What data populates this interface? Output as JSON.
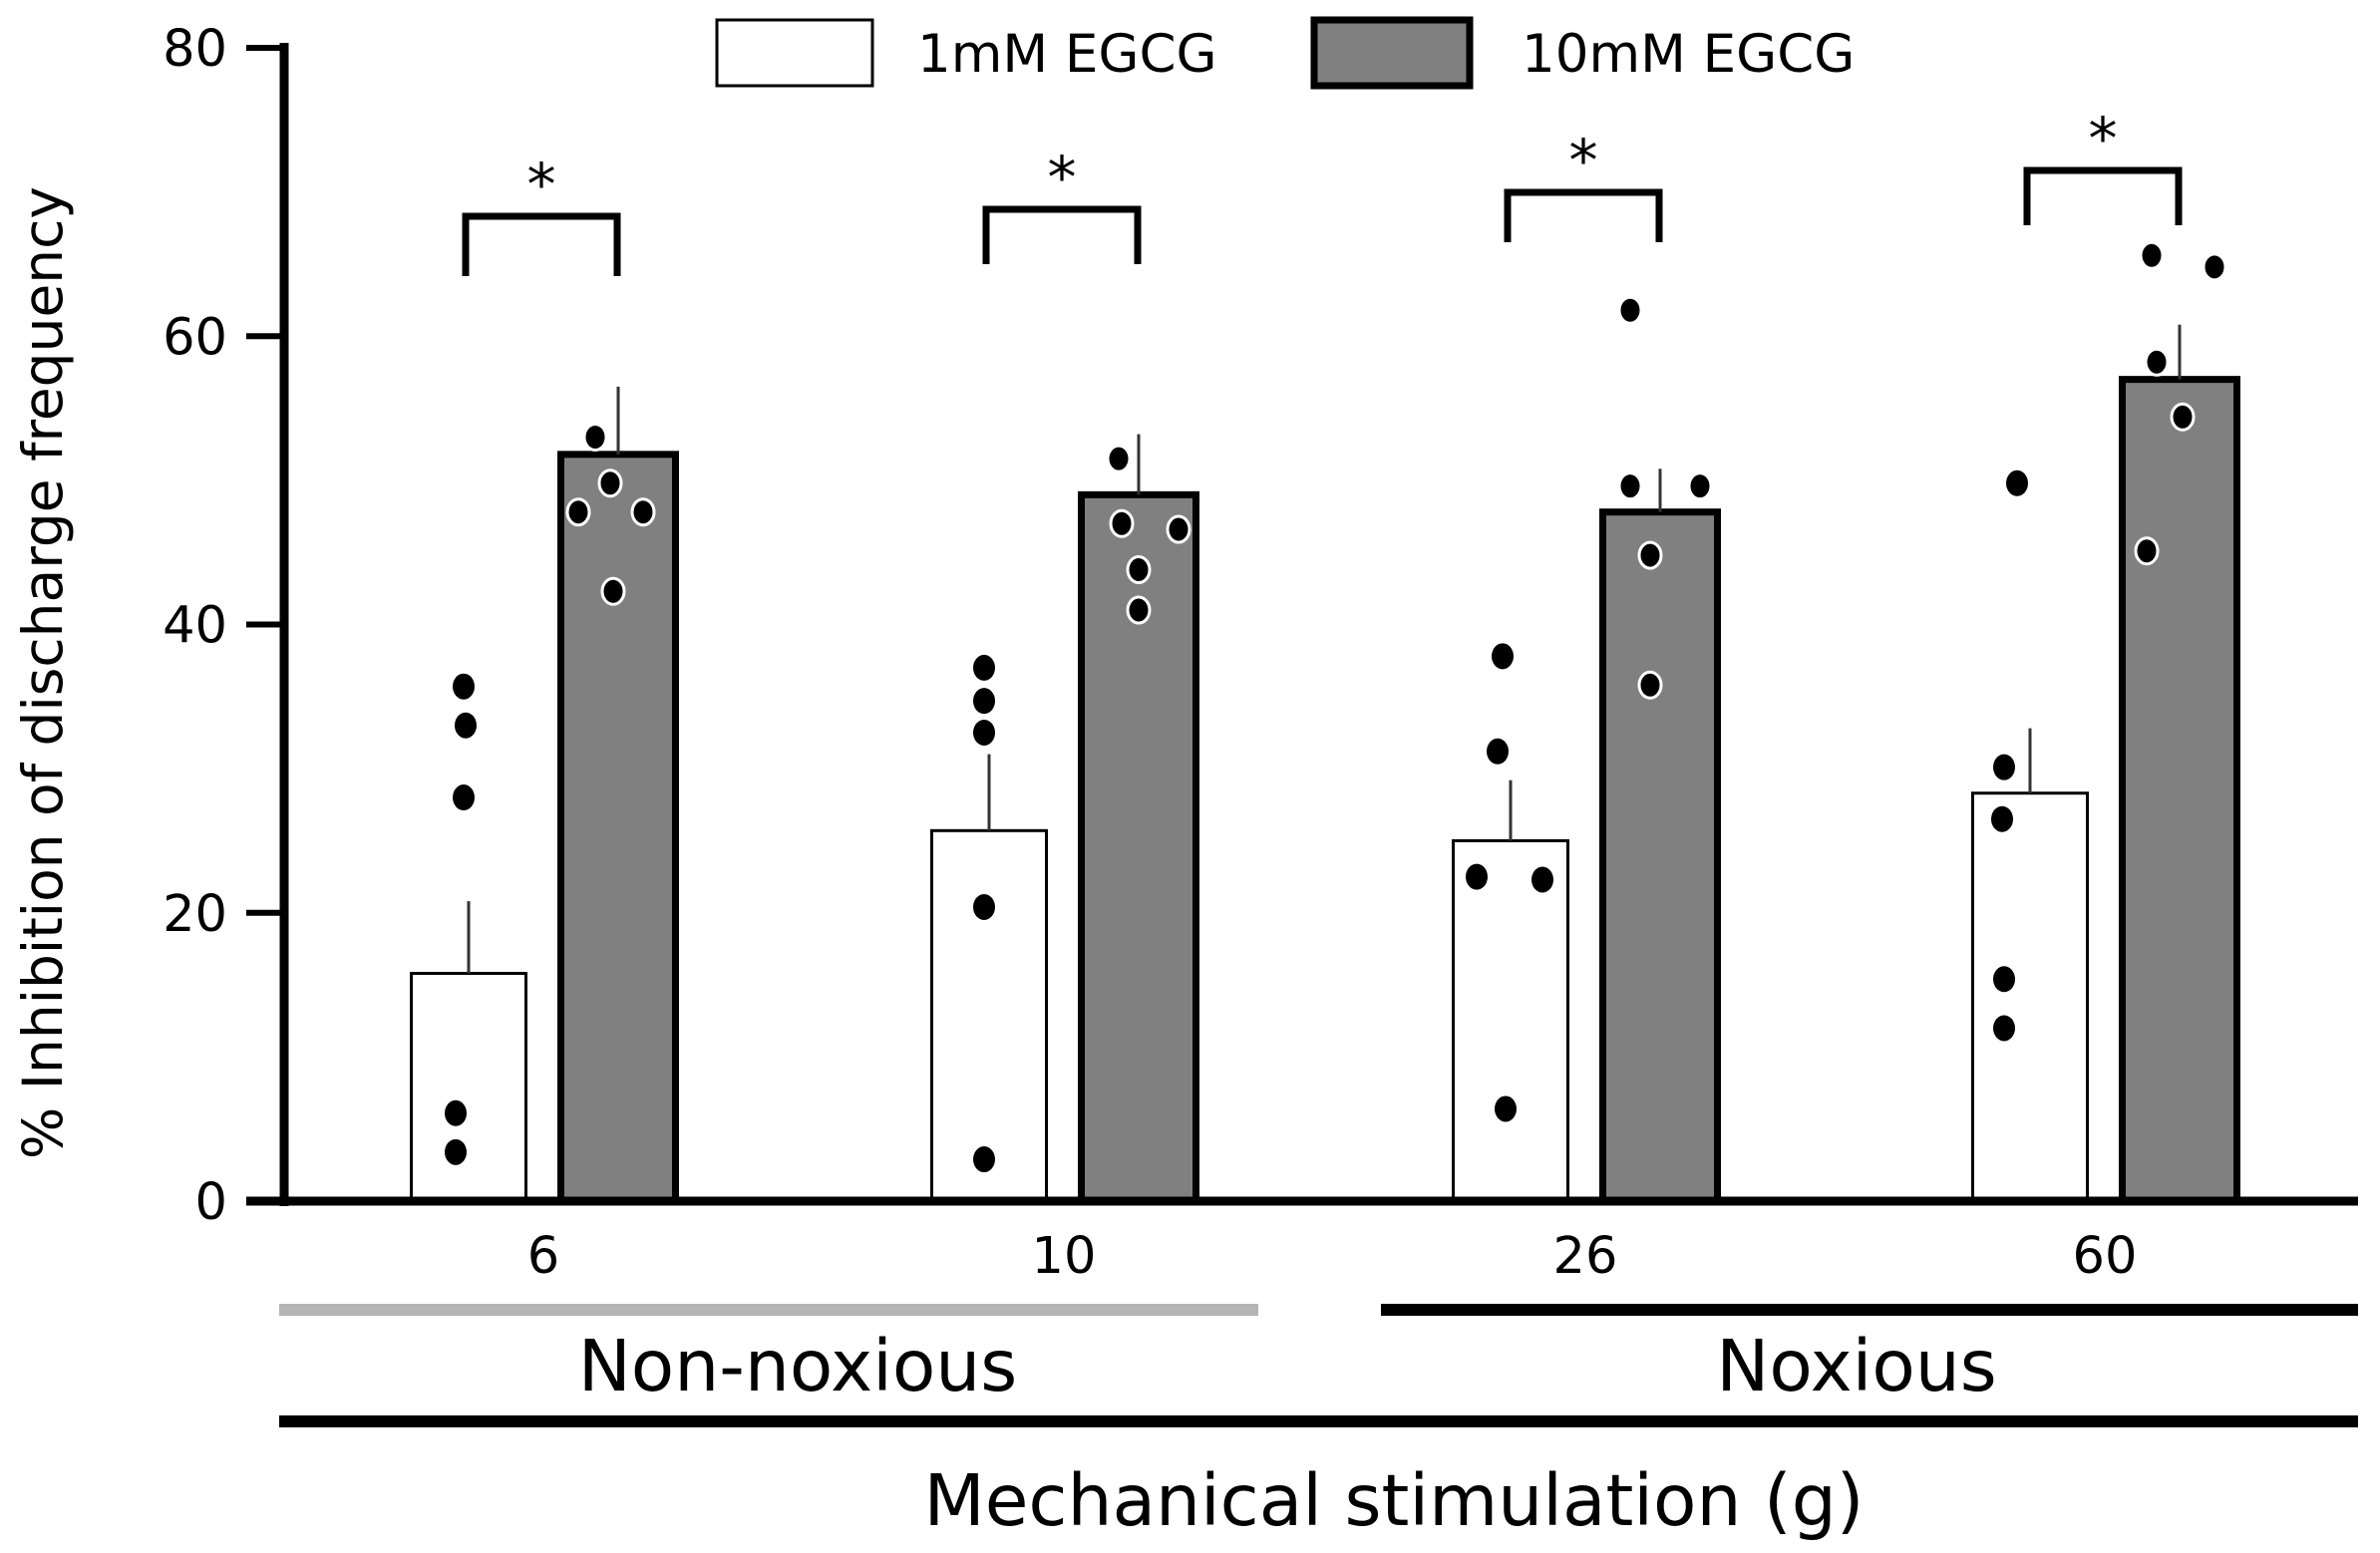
{
  "chart_data": {
    "type": "bar",
    "title": "",
    "ylabel": "% Inhibition of discharge frequency",
    "xlabel": "Mechanical stimulation (g)",
    "ylim": [
      0,
      80
    ],
    "yticks": [
      0,
      20,
      40,
      60,
      80
    ],
    "ytick_labels": [
      "0",
      "20",
      "40",
      "60",
      "80"
    ],
    "categories": [
      "6",
      "10",
      "26",
      "60"
    ],
    "groups": [
      {
        "label": "Non-noxious",
        "categories": [
          "6",
          "10"
        ],
        "line_color": "#b4b4b4"
      },
      {
        "label": "Noxious",
        "categories": [
          "26",
          "60"
        ],
        "line_color": "#000000"
      }
    ],
    "series": [
      {
        "name": "1mM EGCG",
        "fill": "#ffffff",
        "values": [
          15.8,
          25.7,
          25.0,
          28.3
        ],
        "error": [
          5.0,
          5.3,
          4.2,
          4.5
        ],
        "points": [
          [
            35.7,
            33.0,
            28.0,
            6.1,
            3.4
          ],
          [
            37.0,
            34.7,
            32.5,
            20.4,
            2.9
          ],
          [
            37.8,
            31.2,
            22.5,
            22.3,
            6.4
          ],
          [
            49.8,
            30.1,
            26.5,
            15.4,
            12.0
          ]
        ]
      },
      {
        "name": "10mM EGCG",
        "fill": "#808080",
        "values": [
          51.8,
          49.0,
          47.8,
          57.0
        ],
        "error": [
          4.7,
          4.2,
          3.0,
          3.8
        ],
        "points": [
          [
            53.0,
            49.8,
            47.8,
            47.8,
            42.3
          ],
          [
            51.5,
            47.0,
            46.6,
            43.8,
            41.0
          ],
          [
            61.8,
            49.6,
            49.6,
            44.8,
            35.8
          ],
          [
            65.6,
            64.8,
            58.2,
            54.4,
            45.1
          ]
        ]
      }
    ],
    "significance": [
      {
        "category": "6",
        "label": "*"
      },
      {
        "category": "10",
        "label": "*"
      },
      {
        "category": "26",
        "label": "*"
      },
      {
        "category": "60",
        "label": "*"
      }
    ],
    "legend": {
      "position": "top-center",
      "entries": [
        "1mM EGCG",
        "10mM EGCG"
      ]
    },
    "grid": false
  }
}
